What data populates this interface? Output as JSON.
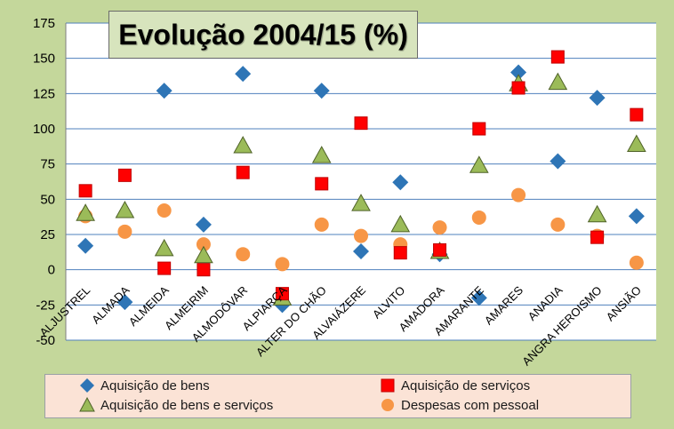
{
  "chart_data": {
    "type": "scatter",
    "title": "Evolução 2004/15 (%)",
    "xlabel": "",
    "ylabel": "",
    "categories": [
      "ALJUSTREL",
      "ALMADA",
      "ALMEIDA",
      "ALMEIRIM",
      "ALMODÔVAR",
      "ALPIARÇA",
      "ALTER DO CHÃO",
      "ALVAIÁZERE",
      "ALVITO",
      "AMADORA",
      "AMARANTE",
      "AMARES",
      "ANADIA",
      "ANGRA  HEROISMO",
      "ANSIÃO"
    ],
    "ylim": [
      -50,
      175
    ],
    "yticks": [
      -50,
      -25,
      0,
      25,
      50,
      75,
      100,
      125,
      150,
      175
    ],
    "grid": true,
    "legend_position": "bottom",
    "series": [
      {
        "name": "Aquisição de bens",
        "marker": "diamond",
        "color": "#2e75b6",
        "values": [
          17,
          -23,
          127,
          32,
          139,
          -25,
          127,
          13,
          62,
          11,
          -20,
          140,
          77,
          122,
          38
        ]
      },
      {
        "name": "Aquisição de serviços",
        "marker": "square",
        "color": "#ff0000",
        "values": [
          56,
          67,
          1,
          0,
          69,
          -17,
          61,
          104,
          12,
          14,
          100,
          129,
          151,
          23,
          110
        ]
      },
      {
        "name": "Aquisição de bens e serviços",
        "marker": "triangle",
        "color": "#9bbb59",
        "values": [
          40,
          42,
          15,
          10,
          88,
          -20,
          81,
          47,
          32,
          13,
          74,
          132,
          133,
          39,
          89
        ]
      },
      {
        "name": "Despesas com pessoal",
        "marker": "circle",
        "color": "#f79646",
        "values": [
          38,
          27,
          42,
          18,
          11,
          4,
          32,
          24,
          18,
          30,
          37,
          53,
          32,
          24,
          5
        ]
      }
    ]
  }
}
